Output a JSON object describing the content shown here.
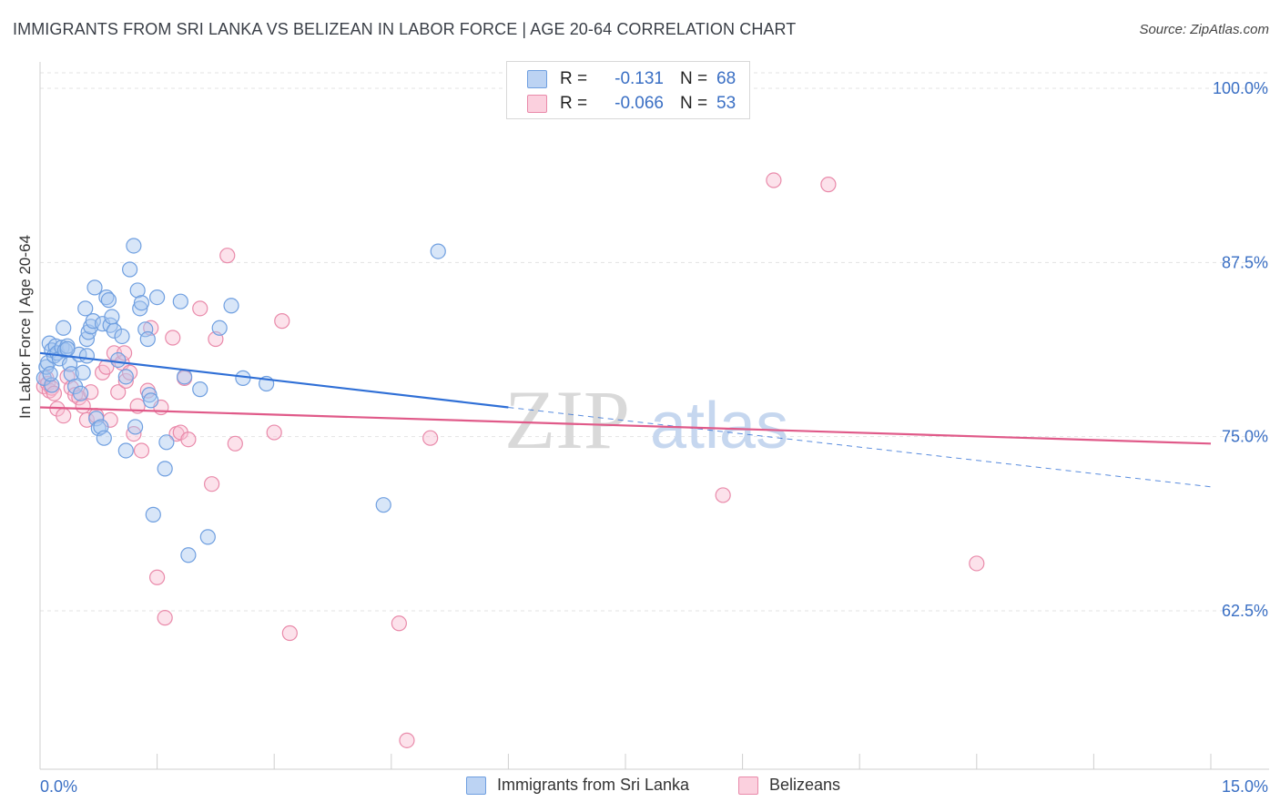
{
  "title": "IMMIGRANTS FROM SRI LANKA VS BELIZEAN IN LABOR FORCE | AGE 20-64 CORRELATION CHART",
  "source": "Source: ZipAtlas.com",
  "watermark": {
    "zip": "ZIP",
    "atlas": "atlas"
  },
  "legend": {
    "r_label": "R =",
    "n_label": "N =",
    "rows": [
      {
        "name": "Immigrants from Sri Lanka",
        "r": "-0.131",
        "n": "68",
        "color": "#a9c8f0",
        "stroke": "#6f9fe0"
      },
      {
        "name": "Belizeans",
        "r": "-0.066",
        "n": "53",
        "color": "#f8bfd3",
        "stroke": "#e98aaa"
      }
    ]
  },
  "chart_data": {
    "type": "scatter",
    "title": "IMMIGRANTS FROM SRI LANKA VS BELIZEAN IN LABOR FORCE | AGE 20-64 CORRELATION CHART",
    "xlabel": "",
    "ylabel": "In Labor Force | Age 20-64",
    "xlim": [
      0,
      15
    ],
    "ylim": [
      52,
      102
    ],
    "x_tick_labels": [
      "0.0%",
      "15.0%"
    ],
    "y_ticks": [
      62.5,
      75.0,
      87.5,
      100.0
    ],
    "y_tick_labels": [
      "62.5%",
      "75.0%",
      "87.5%",
      "100.0%"
    ],
    "series": [
      {
        "name": "Immigrants from Sri Lanka",
        "color": "#6f9fe0",
        "fill": "#a9c8f0",
        "trend": {
          "x0": 0,
          "y0": 81.0,
          "x1": 6.0,
          "y1": 77.1,
          "dash_to_x": 15.0,
          "dash_to_y": 71.4,
          "color": "#2f6fd6"
        },
        "points": [
          [
            0.05,
            79.2
          ],
          [
            0.08,
            80.0
          ],
          [
            0.1,
            80.3
          ],
          [
            0.12,
            81.7
          ],
          [
            0.15,
            81.2
          ],
          [
            0.18,
            80.8
          ],
          [
            0.2,
            81.5
          ],
          [
            0.22,
            81.0
          ],
          [
            0.25,
            80.6
          ],
          [
            0.28,
            81.4
          ],
          [
            0.3,
            82.8
          ],
          [
            0.32,
            81.2
          ],
          [
            0.35,
            81.5
          ],
          [
            0.38,
            80.2
          ],
          [
            0.4,
            79.5
          ],
          [
            0.45,
            78.6
          ],
          [
            0.5,
            80.9
          ],
          [
            0.52,
            78.1
          ],
          [
            0.55,
            79.6
          ],
          [
            0.58,
            84.2
          ],
          [
            0.6,
            82.0
          ],
          [
            0.62,
            82.5
          ],
          [
            0.65,
            82.9
          ],
          [
            0.68,
            83.3
          ],
          [
            0.7,
            85.7
          ],
          [
            0.72,
            76.3
          ],
          [
            0.75,
            75.6
          ],
          [
            0.78,
            75.7
          ],
          [
            0.8,
            83.1
          ],
          [
            0.82,
            74.9
          ],
          [
            0.85,
            85.0
          ],
          [
            0.88,
            84.8
          ],
          [
            0.9,
            83.0
          ],
          [
            0.92,
            83.6
          ],
          [
            0.95,
            82.6
          ],
          [
            1.0,
            80.5
          ],
          [
            1.05,
            82.2
          ],
          [
            1.1,
            79.3
          ],
          [
            1.15,
            87.0
          ],
          [
            1.2,
            88.7
          ],
          [
            1.22,
            75.7
          ],
          [
            1.25,
            85.5
          ],
          [
            1.28,
            84.2
          ],
          [
            1.3,
            84.6
          ],
          [
            1.35,
            82.7
          ],
          [
            1.38,
            82.0
          ],
          [
            1.4,
            78.0
          ],
          [
            1.42,
            77.6
          ],
          [
            1.45,
            69.4
          ],
          [
            1.5,
            85.0
          ],
          [
            1.6,
            72.7
          ],
          [
            1.62,
            74.6
          ],
          [
            1.8,
            84.7
          ],
          [
            1.85,
            79.3
          ],
          [
            1.9,
            66.5
          ],
          [
            2.05,
            78.4
          ],
          [
            2.15,
            67.8
          ],
          [
            2.3,
            82.8
          ],
          [
            2.45,
            84.4
          ],
          [
            2.6,
            79.2
          ],
          [
            2.9,
            78.8
          ],
          [
            4.4,
            70.1
          ],
          [
            5.1,
            88.3
          ],
          [
            0.15,
            78.7
          ],
          [
            0.35,
            81.3
          ],
          [
            0.6,
            80.8
          ],
          [
            0.13,
            79.5
          ],
          [
            1.1,
            74.0
          ]
        ]
      },
      {
        "name": "Belizeans",
        "color": "#e98aaa",
        "fill": "#f8bfd3",
        "trend": {
          "x0": 0,
          "y0": 77.1,
          "x1": 15.0,
          "y1": 74.5,
          "color": "#e05a89"
        },
        "points": [
          [
            0.05,
            78.6
          ],
          [
            0.08,
            79.2
          ],
          [
            0.1,
            78.8
          ],
          [
            0.12,
            78.3
          ],
          [
            0.15,
            78.5
          ],
          [
            0.18,
            78.1
          ],
          [
            0.22,
            77.0
          ],
          [
            0.3,
            76.5
          ],
          [
            0.35,
            79.3
          ],
          [
            0.4,
            78.5
          ],
          [
            0.45,
            78.0
          ],
          [
            0.5,
            77.8
          ],
          [
            0.55,
            77.2
          ],
          [
            0.6,
            76.2
          ],
          [
            0.65,
            78.2
          ],
          [
            0.72,
            76.5
          ],
          [
            0.8,
            79.6
          ],
          [
            0.85,
            80.0
          ],
          [
            0.9,
            76.2
          ],
          [
            0.95,
            81.0
          ],
          [
            1.0,
            78.2
          ],
          [
            1.05,
            80.3
          ],
          [
            1.08,
            81.0
          ],
          [
            1.1,
            79.0
          ],
          [
            1.15,
            79.6
          ],
          [
            1.2,
            75.2
          ],
          [
            1.25,
            77.2
          ],
          [
            1.3,
            74.0
          ],
          [
            1.38,
            78.3
          ],
          [
            1.42,
            82.8
          ],
          [
            1.5,
            64.9
          ],
          [
            1.55,
            77.1
          ],
          [
            1.6,
            62.0
          ],
          [
            1.7,
            82.1
          ],
          [
            1.75,
            75.2
          ],
          [
            1.8,
            75.3
          ],
          [
            1.85,
            79.2
          ],
          [
            1.9,
            74.8
          ],
          [
            2.05,
            84.2
          ],
          [
            2.2,
            71.6
          ],
          [
            2.25,
            82.0
          ],
          [
            2.4,
            88.0
          ],
          [
            2.5,
            74.5
          ],
          [
            3.0,
            75.3
          ],
          [
            3.1,
            83.3
          ],
          [
            3.2,
            60.9
          ],
          [
            4.6,
            61.6
          ],
          [
            4.7,
            53.2
          ],
          [
            5.0,
            74.9
          ],
          [
            8.75,
            70.8
          ],
          [
            9.4,
            93.4
          ],
          [
            10.1,
            93.1
          ],
          [
            12.0,
            65.9
          ]
        ]
      }
    ]
  }
}
